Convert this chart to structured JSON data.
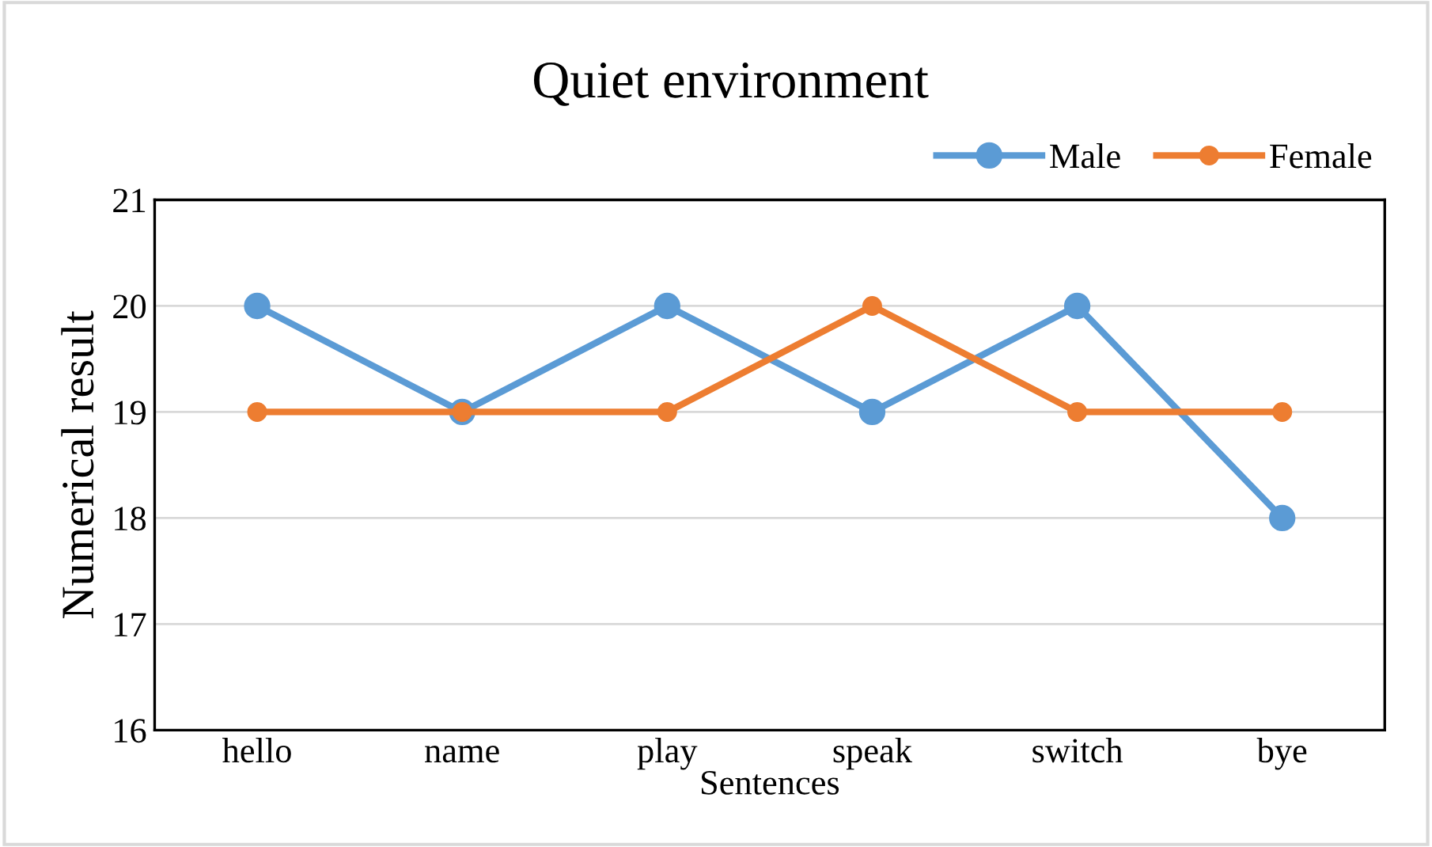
{
  "chart_data": {
    "type": "line",
    "title": "Quiet environment",
    "xlabel": "Sentences",
    "ylabel": "Numerical result",
    "categories": [
      "hello",
      "name",
      "play",
      "speak",
      "switch",
      "bye"
    ],
    "series": [
      {
        "name": "Male",
        "color": "#5b9bd5",
        "values": [
          20,
          19,
          20,
          19,
          20,
          18
        ]
      },
      {
        "name": "Female",
        "color": "#ed7d31",
        "values": [
          19,
          19,
          19,
          20,
          19,
          19
        ]
      }
    ],
    "ylim": [
      16,
      21
    ],
    "yticks": [
      16,
      17,
      18,
      19,
      20,
      21
    ],
    "grid": "y",
    "legend": "top right",
    "marker": "circle",
    "line_style": "solid"
  }
}
